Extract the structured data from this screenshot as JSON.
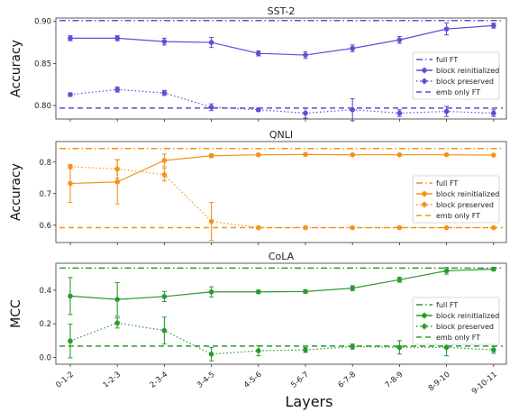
{
  "figure": {
    "xlabel": "Layers"
  },
  "chart_data": [
    {
      "type": "line",
      "title": "SST-2",
      "ylabel": "Accuracy",
      "color": "#5b4fd4",
      "ylim": [
        0.784,
        0.904
      ],
      "yticks": [
        0.8,
        0.85,
        0.9
      ],
      "ytick_labels": [
        "0.80",
        "0.85",
        "0.90"
      ],
      "categories": [
        "0-1-2",
        "1-2-3",
        "2-3-4",
        "3-4-5",
        "4-5-6",
        "5-6-7",
        "6-7-8",
        "7-8-9",
        "8-9-10",
        "9-10-11"
      ],
      "reference_lines": [
        {
          "name": "full FT",
          "value": 0.901,
          "style": "dashdot"
        },
        {
          "name": "emb only FT",
          "value": 0.797,
          "style": "dashed"
        }
      ],
      "series": [
        {
          "name": "block reinitialized",
          "style": "solid",
          "values": [
            0.88,
            0.88,
            0.876,
            0.875,
            0.862,
            0.86,
            0.868,
            0.878,
            0.891,
            0.895
          ],
          "errors": [
            0.003,
            0.003,
            0.004,
            0.006,
            0.003,
            0.004,
            0.004,
            0.004,
            0.007,
            0.003
          ]
        },
        {
          "name": "block preserved",
          "style": "dotted",
          "values": [
            0.813,
            0.819,
            0.815,
            0.798,
            0.795,
            0.791,
            0.795,
            0.791,
            0.793,
            0.791
          ],
          "errors": [
            0.002,
            0.003,
            0.003,
            0.004,
            0.002,
            0.006,
            0.013,
            0.004,
            0.006,
            0.004
          ]
        }
      ],
      "legend": {
        "position": "center-right",
        "entries": [
          "full FT",
          "block reinitialized",
          "block preserved",
          "emb only FT"
        ]
      }
    },
    {
      "type": "line",
      "title": "QNLI",
      "ylabel": "Accuracy",
      "color": "#f39317",
      "ylim": [
        0.545,
        0.865
      ],
      "yticks": [
        0.6,
        0.7,
        0.8
      ],
      "ytick_labels": [
        "0.6",
        "0.7",
        "0.8"
      ],
      "categories": [
        "0-1-2",
        "1-2-3",
        "2-3-4",
        "3-4-5",
        "4-5-6",
        "5-6-7",
        "6-7-8",
        "7-8-9",
        "8-9-10",
        "9-10-11"
      ],
      "reference_lines": [
        {
          "name": "full FT",
          "value": 0.843,
          "style": "dashdot"
        },
        {
          "name": "emb only FT",
          "value": 0.592,
          "style": "dashed"
        }
      ],
      "series": [
        {
          "name": "block reinitialized",
          "style": "solid",
          "values": [
            0.732,
            0.737,
            0.805,
            0.82,
            0.823,
            0.824,
            0.823,
            0.823,
            0.823,
            0.822
          ],
          "errors": [
            0.06,
            0.07,
            0.02,
            0.006,
            0.003,
            0.004,
            0.003,
            0.003,
            0.003,
            0.003
          ]
        },
        {
          "name": "block preserved",
          "style": "dotted",
          "values": [
            0.785,
            0.778,
            0.76,
            0.612,
            0.592,
            0.592,
            0.592,
            0.592,
            0.592,
            0.592
          ],
          "errors": [
            0.006,
            0.03,
            0.02,
            0.06,
            0.004,
            0.004,
            0.003,
            0.003,
            0.003,
            0.003
          ]
        }
      ],
      "legend": {
        "position": "center-right",
        "entries": [
          "full FT",
          "block reinitialized",
          "block preserved",
          "emb only FT"
        ]
      }
    },
    {
      "type": "line",
      "title": "CoLA",
      "ylabel": "MCC",
      "color": "#2a9a2e",
      "ylim": [
        -0.04,
        0.56
      ],
      "yticks": [
        0.0,
        0.2,
        0.4
      ],
      "ytick_labels": [
        "0.0",
        "0.2",
        "0.4"
      ],
      "categories": [
        "0-1-2",
        "1-2-3",
        "2-3-4",
        "3-4-5",
        "4-5-6",
        "5-6-7",
        "6-7-8",
        "7-8-9",
        "8-9-10",
        "9-10-11"
      ],
      "reference_lines": [
        {
          "name": "full FT",
          "value": 0.531,
          "style": "dashdot"
        },
        {
          "name": "emb only FT",
          "value": 0.068,
          "style": "dashed"
        }
      ],
      "series": [
        {
          "name": "block reinitialized",
          "style": "solid",
          "values": [
            0.365,
            0.345,
            0.362,
            0.39,
            0.39,
            0.392,
            0.412,
            0.462,
            0.515,
            0.525
          ],
          "errors": [
            0.11,
            0.1,
            0.03,
            0.03,
            0.01,
            0.01,
            0.015,
            0.015,
            0.02,
            0.01
          ]
        },
        {
          "name": "block preserved",
          "style": "dotted",
          "values": [
            0.098,
            0.205,
            0.16,
            0.02,
            0.04,
            0.045,
            0.065,
            0.06,
            0.06,
            0.045
          ],
          "errors": [
            0.1,
            0.03,
            0.08,
            0.04,
            0.03,
            0.015,
            0.015,
            0.04,
            0.05,
            0.02
          ]
        }
      ],
      "legend": {
        "position": "center-right",
        "entries": [
          "full FT",
          "block reinitialized",
          "block preserved",
          "emb only FT"
        ]
      }
    }
  ]
}
